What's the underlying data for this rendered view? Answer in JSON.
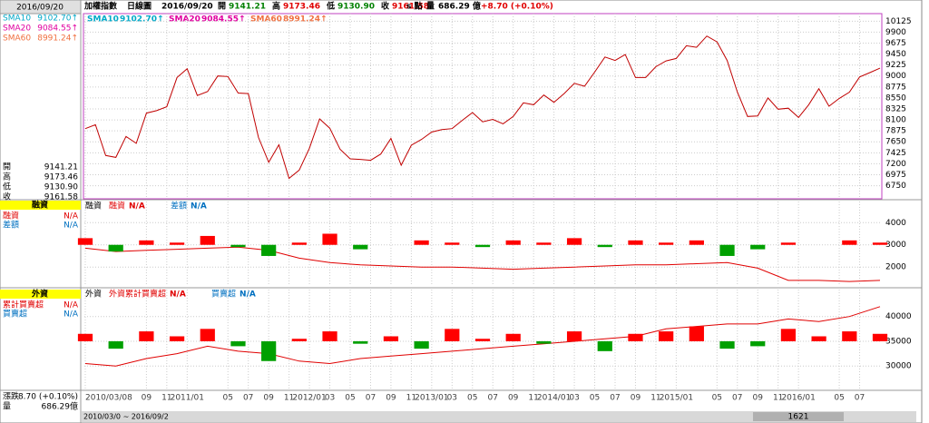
{
  "ui": {
    "date": "2016/09/20",
    "header": [
      {
        "text": "加權指數",
        "color": "#000000"
      },
      {
        "text": "日線圖",
        "color": "#000000"
      },
      {
        "text": "2016/09/20",
        "color": "#000000"
      },
      {
        "text": "開",
        "color": "#000000"
      },
      {
        "text": "9141.21",
        "color": "#008000"
      },
      {
        "text": "高",
        "color": "#000000"
      },
      {
        "text": "9173.46",
        "color": "#e00000"
      },
      {
        "text": "低",
        "color": "#000000"
      },
      {
        "text": "9130.90",
        "color": "#008000"
      },
      {
        "text": "收",
        "color": "#000000"
      },
      {
        "text": "9161.58",
        "color": "#e00000"
      },
      {
        "text": "s 點",
        "color": "#000000"
      },
      {
        "text": "量",
        "color": "#000000"
      },
      {
        "text": "686.29 億",
        "color": "#000000"
      },
      {
        "text": "+8.70 (+0.10%)",
        "color": "#e00000"
      }
    ],
    "sma": [
      {
        "name": "SMA10",
        "value": "9102.70↑",
        "color": "#00a8c8"
      },
      {
        "name": "SMA20",
        "value": "9084.55↑",
        "color": "#e000a0"
      },
      {
        "name": "SMA60",
        "value": "8991.24↑",
        "color": "#f07040"
      }
    ],
    "ohlc": [
      {
        "label": "開",
        "value": "9141.21"
      },
      {
        "label": "高",
        "value": "9173.46"
      },
      {
        "label": "低",
        "value": "9130.90"
      },
      {
        "label": "收",
        "value": "9161.58"
      }
    ],
    "panel2": {
      "title": "融資",
      "rows": [
        {
          "label": "融資",
          "value": "N/A",
          "color": "#e00000"
        },
        {
          "label": "差額",
          "value": "N/A",
          "color": "#0070c0"
        }
      ]
    },
    "panel3": {
      "title": "外資",
      "rows": [
        {
          "label": "累計買賣超",
          "value": "N/A",
          "color": "#e00000"
        },
        {
          "label": "買賣超",
          "value": "N/A",
          "color": "#0070c0"
        }
      ]
    },
    "change_label": "漲跌",
    "change": "8.70 (+0.10%)",
    "volume_label": "量",
    "volume": "686.29億",
    "scroll_range": "2010/03/0 ~ 2016/09/2",
    "scroll_count": "1621"
  },
  "chart_data": [
    {
      "type": "line",
      "color": "#c00000",
      "grid": true,
      "x": [
        "2010-03",
        "2010-04",
        "2010-05",
        "2010-06",
        "2010-07",
        "2010-08",
        "2010-09",
        "2010-10",
        "2010-11",
        "2010-12",
        "2011-01",
        "2011-02",
        "2011-03",
        "2011-04",
        "2011-05",
        "2011-06",
        "2011-07",
        "2011-08",
        "2011-09",
        "2011-10",
        "2011-11",
        "2011-12",
        "2012-01",
        "2012-02",
        "2012-03",
        "2012-04",
        "2012-05",
        "2012-06",
        "2012-07",
        "2012-08",
        "2012-09",
        "2012-10",
        "2012-11",
        "2012-12",
        "2013-01",
        "2013-02",
        "2013-03",
        "2013-04",
        "2013-05",
        "2013-06",
        "2013-07",
        "2013-08",
        "2013-09",
        "2013-10",
        "2013-11",
        "2013-12",
        "2014-01",
        "2014-02",
        "2014-03",
        "2014-04",
        "2014-05",
        "2014-06",
        "2014-07",
        "2014-08",
        "2014-09",
        "2014-10",
        "2014-11",
        "2014-12",
        "2015-01",
        "2015-02",
        "2015-03",
        "2015-04",
        "2015-05",
        "2015-06",
        "2015-07",
        "2015-08",
        "2015-09",
        "2015-10",
        "2015-11",
        "2015-12",
        "2016-01",
        "2016-02",
        "2016-03",
        "2016-04",
        "2016-05",
        "2016-06",
        "2016-07",
        "2016-08",
        "2016-09"
      ],
      "values": [
        7920,
        8000,
        7370,
        7330,
        7760,
        7620,
        8240,
        8290,
        8370,
        8970,
        9150,
        8600,
        8680,
        9000,
        8990,
        8650,
        8640,
        7740,
        7230,
        7590,
        6900,
        7070,
        7520,
        8120,
        7930,
        7500,
        7300,
        7290,
        7270,
        7400,
        7720,
        7170,
        7580,
        7700,
        7850,
        7900,
        7920,
        8090,
        8250,
        8060,
        8110,
        8020,
        8170,
        8450,
        8410,
        8610,
        8460,
        8640,
        8850,
        8790,
        9080,
        9390,
        9320,
        9440,
        8970,
        8970,
        9190,
        9310,
        9360,
        9620,
        9590,
        9820,
        9700,
        9320,
        8670,
        8170,
        8180,
        8550,
        8320,
        8340,
        8150,
        8410,
        8740,
        8380,
        8540,
        8670,
        8980,
        9070,
        9160
      ],
      "xlim": [
        "2010-03",
        "2016-09"
      ],
      "ylim": [
        6500,
        10280
      ],
      "yticks": [
        6750,
        6975,
        7200,
        7425,
        7650,
        7875,
        8100,
        8325,
        8550,
        8775,
        9000,
        9225,
        9450,
        9675,
        9900,
        10125
      ]
    },
    {
      "type": "bar-line",
      "title": "融資",
      "grid": true,
      "x": [
        "2010-03",
        "2010-06",
        "2010-09",
        "2010-12",
        "2011-03",
        "2011-06",
        "2011-09",
        "2011-12",
        "2012-03",
        "2012-06",
        "2012-09",
        "2012-12",
        "2013-03",
        "2013-06",
        "2013-09",
        "2013-12",
        "2014-03",
        "2014-06",
        "2014-09",
        "2014-12",
        "2015-03",
        "2015-06",
        "2015-09",
        "2015-12",
        "2016-03",
        "2016-06",
        "2016-09"
      ],
      "series": [
        {
          "name": "融資",
          "value_label": "N/A",
          "kind": "line",
          "color": "#e00000",
          "values": [
            2850,
            2700,
            2750,
            2800,
            2850,
            2900,
            2750,
            2400,
            2200,
            2100,
            2050,
            2000,
            2000,
            1950,
            1900,
            1950,
            2000,
            2050,
            2100,
            2100,
            2150,
            2200,
            1950,
            1400,
            1400,
            1350,
            1400
          ]
        },
        {
          "name": "差額",
          "value_label": "N/A",
          "kind": "bar",
          "color": "#0070c0",
          "up_color": "#ff0000",
          "down_color": "#00a000",
          "values": [
            3300,
            2700,
            3200,
            3100,
            3400,
            2900,
            2500,
            3100,
            3500,
            2800,
            3000,
            3200,
            3100,
            2900,
            3200,
            3100,
            3300,
            2900,
            3200,
            3100,
            3200,
            2500,
            2800,
            3100,
            3000,
            3200,
            3100
          ]
        }
      ],
      "xlim": [
        "2010-03",
        "2016-09"
      ],
      "ylim": [
        1150,
        4950
      ],
      "yticks": [
        2000,
        3000,
        4000
      ]
    },
    {
      "type": "bar-line",
      "title": "外資",
      "grid": true,
      "x": [
        "2010-03",
        "2010-06",
        "2010-09",
        "2010-12",
        "2011-03",
        "2011-06",
        "2011-09",
        "2011-12",
        "2012-03",
        "2012-06",
        "2012-09",
        "2012-12",
        "2013-03",
        "2013-06",
        "2013-09",
        "2013-12",
        "2014-03",
        "2014-06",
        "2014-09",
        "2014-12",
        "2015-03",
        "2015-06",
        "2015-09",
        "2015-12",
        "2016-03",
        "2016-06",
        "2016-09"
      ],
      "series": [
        {
          "name": "外資累計買賣超",
          "value_label": "N/A",
          "kind": "line",
          "color": "#e00000",
          "values": [
            30500,
            30000,
            31500,
            32500,
            34000,
            33000,
            32500,
            31000,
            30500,
            31500,
            32000,
            32500,
            33000,
            33500,
            34000,
            34500,
            35000,
            35500,
            36000,
            37500,
            38000,
            38500,
            38500,
            39500,
            39000,
            40000,
            42000
          ]
        },
        {
          "name": "買賣超",
          "value_label": "N/A",
          "kind": "bar",
          "color": "#0070c0",
          "up_color": "#ff0000",
          "down_color": "#00a000",
          "values": [
            36500,
            33500,
            37000,
            36000,
            37500,
            34000,
            31000,
            35500,
            37000,
            34500,
            36000,
            33500,
            37500,
            35500,
            36500,
            34500,
            37000,
            33000,
            36500,
            37000,
            38000,
            33500,
            34000,
            37500,
            36000,
            37000,
            36500
          ]
        }
      ],
      "xlim": [
        "2010-03",
        "2016-09"
      ],
      "ylim": [
        25450,
        45450
      ],
      "yticks": [
        30000,
        35000,
        40000
      ],
      "xticks": [
        {
          "value": "2010-03",
          "label": "2010/03/08"
        },
        {
          "value": "2010-09",
          "label": "09"
        },
        {
          "value": "2010-11",
          "label": "11"
        },
        {
          "value": "2011-01",
          "label": "2011/01"
        },
        {
          "value": "2011-05",
          "label": "05"
        },
        {
          "value": "2011-07",
          "label": "07"
        },
        {
          "value": "2011-09",
          "label": "09"
        },
        {
          "value": "2011-11",
          "label": "11"
        },
        {
          "value": "2012-01",
          "label": "2012/01"
        },
        {
          "value": "2012-03",
          "label": "03"
        },
        {
          "value": "2012-05",
          "label": "05"
        },
        {
          "value": "2012-07",
          "label": "07"
        },
        {
          "value": "2012-09",
          "label": "09"
        },
        {
          "value": "2012-11",
          "label": "11"
        },
        {
          "value": "2013-01",
          "label": "2013/01"
        },
        {
          "value": "2013-03",
          "label": "03"
        },
        {
          "value": "2013-05",
          "label": "05"
        },
        {
          "value": "2013-07",
          "label": "07"
        },
        {
          "value": "2013-09",
          "label": "09"
        },
        {
          "value": "2013-11",
          "label": "11"
        },
        {
          "value": "2014-01",
          "label": "2014/01"
        },
        {
          "value": "2014-03",
          "label": "03"
        },
        {
          "value": "2014-05",
          "label": "05"
        },
        {
          "value": "2014-07",
          "label": "07"
        },
        {
          "value": "2014-09",
          "label": "09"
        },
        {
          "value": "2014-11",
          "label": "11"
        },
        {
          "value": "2015-01",
          "label": "2015/01"
        },
        {
          "value": "2015-05",
          "label": "05"
        },
        {
          "value": "2015-07",
          "label": "07"
        },
        {
          "value": "2015-09",
          "label": "09"
        },
        {
          "value": "2015-11",
          "label": "11"
        },
        {
          "value": "2016-01",
          "label": "2016/01"
        },
        {
          "value": "2016-05",
          "label": "05"
        },
        {
          "value": "2016-07",
          "label": "07"
        }
      ]
    }
  ]
}
